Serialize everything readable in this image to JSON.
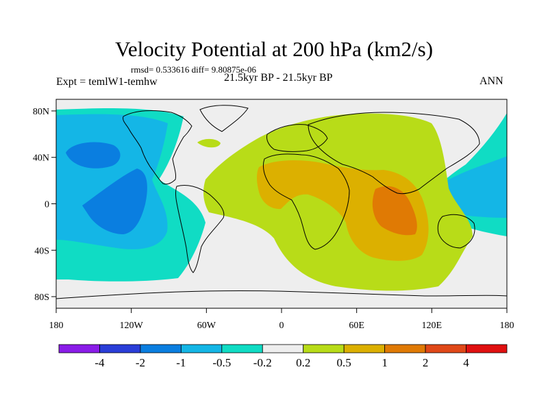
{
  "chart_data": {
    "type": "filled-contour-map",
    "title": "Velocity Potential at 200 hPa (km2/s)",
    "stats": "rmsd= 0.533616 diff= 9.80875e-06",
    "left_label": "Expt = temlW1-temhw",
    "center_label": "21.5kyr BP - 21.5kyr BP",
    "right_label": "ANN",
    "lon_range": [
      -180,
      180
    ],
    "lat_range": [
      -90,
      90
    ],
    "y_ticks": [
      {
        "value": 80,
        "label": "80N"
      },
      {
        "value": 40,
        "label": "40N"
      },
      {
        "value": 0,
        "label": "0"
      },
      {
        "value": -40,
        "label": "40S"
      },
      {
        "value": -80,
        "label": "80S"
      }
    ],
    "x_ticks": [
      {
        "value": -180,
        "label": "180"
      },
      {
        "value": -120,
        "label": "120W"
      },
      {
        "value": -60,
        "label": "60W"
      },
      {
        "value": 0,
        "label": "0"
      },
      {
        "value": 60,
        "label": "60E"
      },
      {
        "value": 120,
        "label": "120E"
      },
      {
        "value": 180,
        "label": "180"
      }
    ],
    "colorbar": {
      "levels": [
        "-4",
        "-2",
        "-1",
        "-0.5",
        "-0.2",
        "0.2",
        "0.5",
        "1",
        "2",
        "4"
      ],
      "colors": [
        "#8a1ce8",
        "#2a3ed8",
        "#0a7ee0",
        "#14b6e6",
        "#10dcc4",
        "#eeeeee",
        "#b8dc18",
        "#dcb000",
        "#e07a04",
        "#e04818",
        "#e01010"
      ]
    },
    "regions": [
      {
        "name": "central pacific negative anomaly",
        "level": "-0.5 to -0.2",
        "lon": [
          -180,
          -125
        ],
        "lat": [
          -45,
          70
        ]
      },
      {
        "name": "north pacific minimum",
        "level": "-2 to -1",
        "lon": [
          -165,
          -130
        ],
        "lat": [
          35,
          50
        ]
      },
      {
        "name": "tropical pacific minimum",
        "level": "-2 to -1",
        "lon": [
          -155,
          -130
        ],
        "lat": [
          -15,
          20
        ]
      },
      {
        "name": "western pacific negative anomaly",
        "level": "-1 to -0.2",
        "lon": [
          130,
          180
        ],
        "lat": [
          -25,
          40
        ]
      },
      {
        "name": "afro-eurasian positive anomaly",
        "level": "0.2 to 0.5",
        "lon": [
          -40,
          150
        ],
        "lat": [
          -60,
          70
        ]
      },
      {
        "name": "indian ocean maximum",
        "level": "1 to 2",
        "lon": [
          70,
          105
        ],
        "lat": [
          -20,
          15
        ]
      }
    ]
  }
}
